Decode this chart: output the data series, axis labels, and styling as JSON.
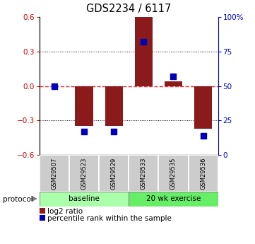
{
  "title": "GDS2234 / 6117",
  "samples": [
    "GSM29507",
    "GSM29523",
    "GSM29529",
    "GSM29533",
    "GSM29535",
    "GSM29536"
  ],
  "log2_ratios": [
    0.0,
    -0.35,
    -0.35,
    0.62,
    0.04,
    -0.37
  ],
  "percentile_ranks": [
    50,
    17,
    17,
    82,
    57,
    14
  ],
  "ylim_left": [
    -0.6,
    0.6
  ],
  "ylim_right": [
    0,
    100
  ],
  "yticks_left": [
    -0.6,
    -0.3,
    0.0,
    0.3,
    0.6
  ],
  "yticks_right": [
    0,
    25,
    50,
    75,
    100
  ],
  "ytick_labels_right": [
    "0",
    "25",
    "50",
    "75",
    "100%"
  ],
  "bar_color": "#8B1A1A",
  "blue_color": "#0000BB",
  "red_dashed_color": "#EE3333",
  "baseline_color": "#AAFFAA",
  "exercise_color": "#66EE66",
  "groups": [
    {
      "label": "baseline",
      "indices": [
        0,
        1,
        2
      ]
    },
    {
      "label": "20 wk exercise",
      "indices": [
        3,
        4,
        5
      ]
    }
  ],
  "protocol_label": "protocol",
  "legend_log2": "log2 ratio",
  "legend_pct": "percentile rank within the sample",
  "bar_width": 0.6,
  "blue_square_size": 30
}
